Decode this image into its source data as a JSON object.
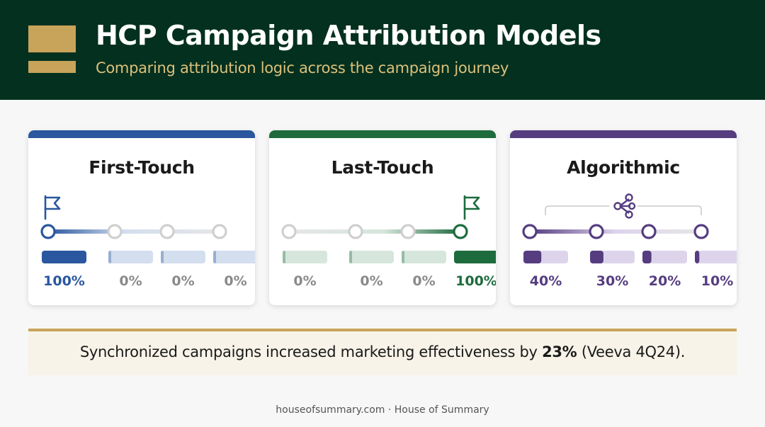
{
  "header": {
    "title": "HCP Campaign Attribution Models",
    "subtitle": "Comparing attribution logic across the campaign journey"
  },
  "models": [
    {
      "title": "First-Touch",
      "color": "#2a579e",
      "light": "#d3deee",
      "icon": "flag-icon",
      "credits": [
        100,
        0,
        0,
        0
      ],
      "labels": [
        "100%",
        "0%",
        "0%",
        "0%"
      ]
    },
    {
      "title": "Last-Touch",
      "color": "#1e6b3e",
      "light": "#d6e6dc",
      "icon": "flag-icon",
      "credits": [
        0,
        0,
        0,
        100
      ],
      "labels": [
        "0%",
        "0%",
        "0%",
        "100%"
      ]
    },
    {
      "title": "Algorithmic",
      "color": "#553d80",
      "light": "#ddd4ec",
      "icon": "network-icon",
      "credits": [
        40,
        30,
        20,
        10
      ],
      "labels": [
        "40%",
        "30%",
        "20%",
        "10%"
      ]
    }
  ],
  "stat": {
    "prefix": "Synchronized campaigns increased marketing effectiveness by ",
    "value": "23%",
    "suffix": " (Veeva 4Q24)."
  },
  "footer": "houseofsummary.com · House of Summary"
}
